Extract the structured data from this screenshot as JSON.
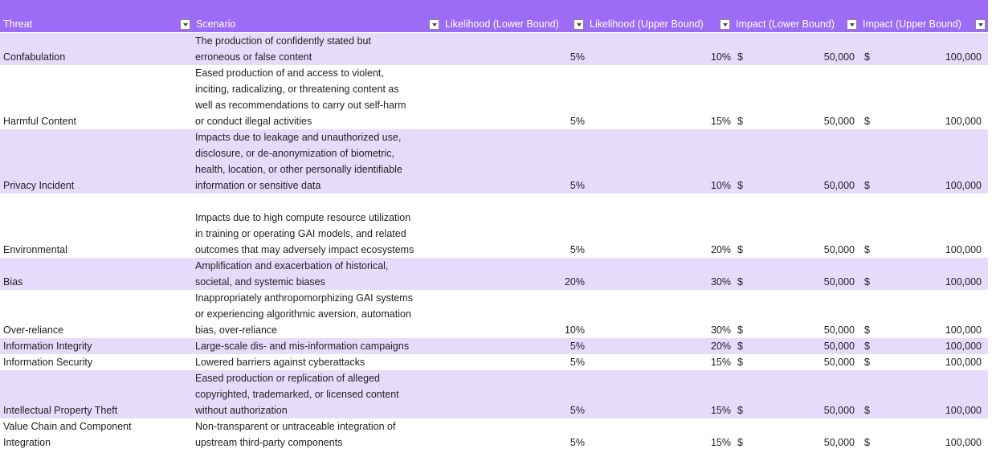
{
  "header": {
    "columns": [
      "Threat",
      "Scenario",
      "Likelihood (Lower Bound)",
      "Likelihood (Upper Bound)",
      "Impact (Lower Bound)",
      "Impact (Upper Bound)"
    ]
  },
  "table": {
    "rows": [
      {
        "threat": [
          "Confabulation"
        ],
        "scenario": [
          "The production of confidently stated but",
          "erroneous or false content"
        ],
        "likelihood_lower": "5%",
        "likelihood_upper": "10%",
        "impact_lower": {
          "currency": "$",
          "amount": "50,000"
        },
        "impact_upper": {
          "currency": "$",
          "amount": "100,000"
        }
      },
      {
        "threat": [
          "Harmful Content"
        ],
        "scenario": [
          "Eased production of and access to violent,",
          "inciting, radicalizing, or threatening content as",
          "well as recommendations to carry out self-harm",
          "or conduct illegal activities"
        ],
        "likelihood_lower": "5%",
        "likelihood_upper": "15%",
        "impact_lower": {
          "currency": "$",
          "amount": "50,000"
        },
        "impact_upper": {
          "currency": "$",
          "amount": "100,000"
        }
      },
      {
        "threat": [
          "Privacy Incident"
        ],
        "scenario": [
          "Impacts due to leakage and unauthorized use,",
          "disclosure, or de-anonymization of biometric,",
          "health, location, or other personally identifiable",
          "information or sensitive data"
        ],
        "likelihood_lower": "5%",
        "likelihood_upper": "10%",
        "impact_lower": {
          "currency": "$",
          "amount": "50,000"
        },
        "impact_upper": {
          "currency": "$",
          "amount": "100,000"
        }
      },
      {
        "threat": [
          "Environmental"
        ],
        "scenario": [
          "Impacts due to high compute resource utilization",
          "in training or operating GAI models, and related",
          "outcomes that may adversely impact ecosystems"
        ],
        "likelihood_lower": "5%",
        "likelihood_upper": "20%",
        "impact_lower": {
          "currency": "$",
          "amount": "50,000"
        },
        "impact_upper": {
          "currency": "$",
          "amount": "100,000"
        }
      },
      {
        "threat": [
          "Bias"
        ],
        "scenario": [
          "Amplification and exacerbation of historical,",
          "societal, and systemic biases"
        ],
        "likelihood_lower": "20%",
        "likelihood_upper": "30%",
        "impact_lower": {
          "currency": "$",
          "amount": "50,000"
        },
        "impact_upper": {
          "currency": "$",
          "amount": "100,000"
        }
      },
      {
        "threat": [
          "Over-reliance"
        ],
        "scenario": [
          "Inappropriately anthropomorphizing GAI systems",
          "or experiencing algorithmic aversion, automation",
          "bias, over-reliance"
        ],
        "likelihood_lower": "10%",
        "likelihood_upper": "30%",
        "impact_lower": {
          "currency": "$",
          "amount": "50,000"
        },
        "impact_upper": {
          "currency": "$",
          "amount": "100,000"
        }
      },
      {
        "threat": [
          "Information Integrity"
        ],
        "scenario": [
          "Large-scale dis- and mis-information campaigns"
        ],
        "likelihood_lower": "5%",
        "likelihood_upper": "20%",
        "impact_lower": {
          "currency": "$",
          "amount": "50,000"
        },
        "impact_upper": {
          "currency": "$",
          "amount": "100,000"
        }
      },
      {
        "threat": [
          "Information Security"
        ],
        "scenario": [
          "Lowered barriers against cyberattacks"
        ],
        "likelihood_lower": "5%",
        "likelihood_upper": "15%",
        "impact_lower": {
          "currency": "$",
          "amount": "50,000"
        },
        "impact_upper": {
          "currency": "$",
          "amount": "100,000"
        }
      },
      {
        "threat": [
          "Intellectual Property Theft"
        ],
        "scenario": [
          "Eased production or replication of alleged",
          "copyrighted, trademarked, or licensed content",
          "without authorization"
        ],
        "likelihood_lower": "5%",
        "likelihood_upper": "15%",
        "impact_lower": {
          "currency": "$",
          "amount": "50,000"
        },
        "impact_upper": {
          "currency": "$",
          "amount": "100,000"
        }
      },
      {
        "threat": [
          "Value Chain and Component",
          "Integration"
        ],
        "scenario": [
          "Non-transparent or untraceable integration of",
          "upstream third-party components"
        ],
        "likelihood_lower": "5%",
        "likelihood_upper": "15%",
        "impact_lower": {
          "currency": "$",
          "amount": "50,000"
        },
        "impact_upper": {
          "currency": "$",
          "amount": "100,000"
        }
      }
    ]
  }
}
